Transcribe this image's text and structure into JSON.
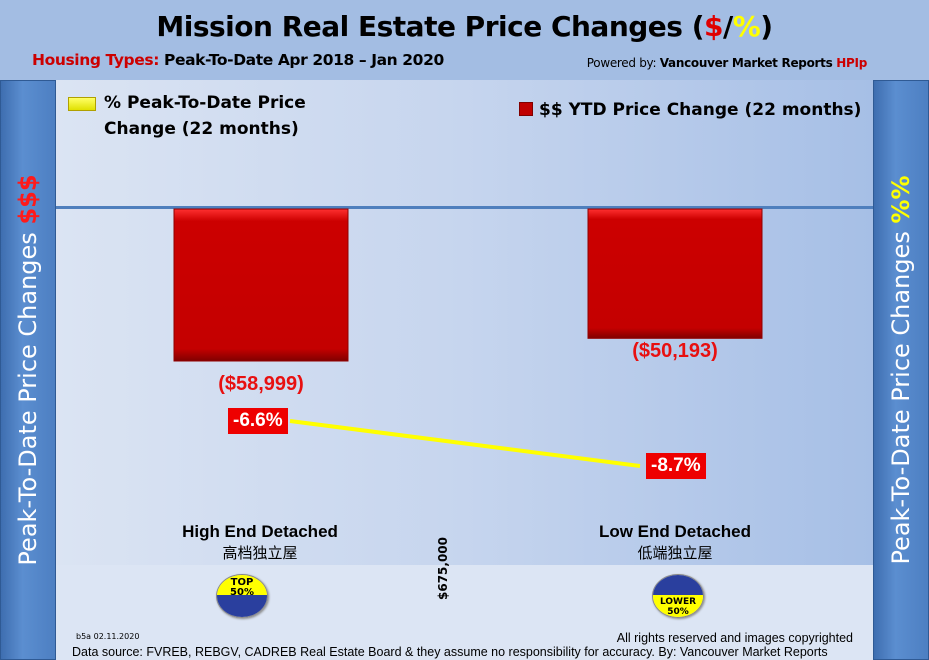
{
  "header": {
    "title_main": "Mission Real Estate Price Changes (",
    "title_dollar": "$",
    "title_slash": "/",
    "title_pct": "%",
    "title_close": ")",
    "subtitle_label": "Housing Types:",
    "subtitle_text": " Peak-To-Date Apr 2018 – Jan 2020",
    "powered_prefix": "Powered by: ",
    "powered_name": "Vancouver Market Reports ",
    "powered_brand": "HPIp"
  },
  "side_left": {
    "text": "Peak-To-Date Price Changes ",
    "accent": "$$$"
  },
  "side_right": {
    "text": "Peak-To-Date  Price  Changes ",
    "accent": "%%"
  },
  "chart_data": {
    "type": "bar",
    "title": "Mission Real Estate Price Changes ($/%)",
    "categories": [
      "High End Detached",
      "Low End Detached"
    ],
    "categories_zh": [
      "高档独立屋",
      "低端独立屋"
    ],
    "series": [
      {
        "name": "$$ YTD Price Change (22 months)",
        "type": "bar",
        "color": "#cc0000",
        "values": [
          -58999,
          -50193
        ],
        "labels": [
          "($58,999)",
          "($50,193)"
        ]
      },
      {
        "name": "% Peak-To-Date Price Change (22 months)",
        "type": "line",
        "color": "#ffff00",
        "values": [
          -6.6,
          -8.7
        ],
        "labels": [
          "-6.6%",
          "-8.7%"
        ]
      }
    ],
    "legend": [
      "% Peak-To-Date Price Change (22 months)",
      "$$ YTD Price Change (22 months)"
    ],
    "legend_placement": "top",
    "divider_label": "$675,000",
    "badges": [
      "TOP 50%",
      "LOWER 50%"
    ],
    "xlabel": "",
    "ylabel_left": "Peak-To-Date Price Changes $$$",
    "ylabel_right": "Peak-To-Date Price Changes %%",
    "grid": false
  },
  "legend": {
    "line_label_1": "% Peak-To-Date Price",
    "line_label_2": "Change (22 months)",
    "bar_label": "$$ YTD Price Change (22 months)"
  },
  "badges": {
    "top_l1": "TOP",
    "top_l2": "50%",
    "lower_l1": "LOWER",
    "lower_l2": "50%"
  },
  "footer": {
    "code": "b5a 02.11.2020",
    "rights": "All rights reserved and  images copyrighted",
    "source": "Data source: FVREB, REBGV, CADREB Real Estate Board & they assume no responsibility for accuracy. By: Vancouver Market Reports"
  }
}
